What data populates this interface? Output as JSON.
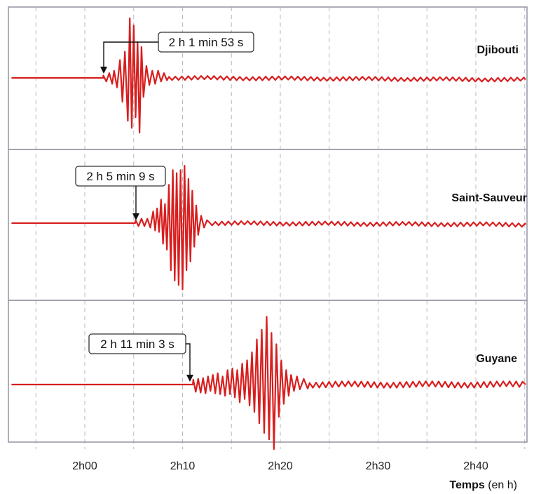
{
  "chart_data": {
    "type": "line",
    "xlabel_bold": "Temps",
    "xlabel_rest": " (en h)",
    "x_ticks": [
      {
        "label": "2h00",
        "minute": 0
      },
      {
        "label": "2h10",
        "minute": 10
      },
      {
        "label": "2h20",
        "minute": 20
      },
      {
        "label": "2h30",
        "minute": 30
      },
      {
        "label": "2h40",
        "minute": 40
      }
    ],
    "xlim_minutes": [
      -7.5,
      45
    ],
    "grid": true,
    "trace_color": "#d81e1e",
    "panel_border_color": "#9a9aa8",
    "series": [
      {
        "name": "Djibouti",
        "arrival_label": "2 h 1 min 53 s",
        "arrival_minute": 1.88,
        "flat_start": -7.5,
        "burst": [
          [
            1.9,
            0.2
          ],
          [
            2.2,
            -0.3
          ],
          [
            2.5,
            0.4
          ],
          [
            2.8,
            -0.5
          ],
          [
            3.0,
            0.6
          ],
          [
            3.3,
            -0.8
          ],
          [
            3.6,
            1.5
          ],
          [
            3.85,
            -2.0
          ],
          [
            4.1,
            2.2
          ],
          [
            4.4,
            -3.6
          ],
          [
            4.6,
            5.0
          ],
          [
            4.8,
            -4.2
          ],
          [
            5.0,
            4.4
          ],
          [
            5.2,
            -3.3
          ],
          [
            5.4,
            3.0
          ],
          [
            5.6,
            -4.6
          ],
          [
            5.8,
            2.6
          ],
          [
            6.0,
            -1.6
          ],
          [
            6.3,
            1.0
          ],
          [
            6.6,
            -0.6
          ],
          [
            6.9,
            0.6
          ],
          [
            7.2,
            -0.5
          ],
          [
            7.5,
            0.6
          ],
          [
            7.8,
            -0.3
          ],
          [
            8.1,
            0.4
          ],
          [
            8.4,
            -0.2
          ]
        ],
        "coda_from": 8.6,
        "coda_amp": 0.18,
        "end_offset": -0.15
      },
      {
        "name": "Saint-Sauveur",
        "arrival_label": "2 h 5 min 9 s",
        "arrival_minute": 5.15,
        "flat_start": -7.5,
        "burst": [
          [
            5.2,
            0.2
          ],
          [
            5.5,
            -0.2
          ],
          [
            5.8,
            0.3
          ],
          [
            6.1,
            -0.2
          ],
          [
            6.4,
            0.3
          ],
          [
            6.7,
            -0.3
          ],
          [
            7.0,
            0.8
          ],
          [
            7.2,
            -0.5
          ],
          [
            7.4,
            1.0
          ],
          [
            7.6,
            -0.6
          ],
          [
            7.8,
            1.6
          ],
          [
            8.0,
            -1.4
          ],
          [
            8.2,
            1.3
          ],
          [
            8.4,
            -1.8
          ],
          [
            8.6,
            2.6
          ],
          [
            8.8,
            -3.2
          ],
          [
            9.0,
            3.6
          ],
          [
            9.2,
            -3.9
          ],
          [
            9.4,
            3.4
          ],
          [
            9.6,
            -4.2
          ],
          [
            9.8,
            3.6
          ],
          [
            10.0,
            -4.5
          ],
          [
            10.2,
            3.9
          ],
          [
            10.4,
            -3.2
          ],
          [
            10.6,
            3.0
          ],
          [
            10.8,
            -2.6
          ],
          [
            11.0,
            2.2
          ],
          [
            11.2,
            -1.6
          ],
          [
            11.4,
            1.2
          ],
          [
            11.6,
            -0.8
          ],
          [
            11.9,
            0.5
          ],
          [
            12.2,
            -0.3
          ],
          [
            12.5,
            0.2
          ]
        ],
        "coda_from": 12.7,
        "coda_amp": 0.15,
        "end_offset": -0.1
      },
      {
        "name": "Guyane",
        "arrival_label": "2 h 11 min 3 s",
        "arrival_minute": 11.05,
        "flat_start": -7.5,
        "burst": [
          [
            11.1,
            0.3
          ],
          [
            11.35,
            -0.45
          ],
          [
            11.6,
            0.35
          ],
          [
            11.85,
            -0.5
          ],
          [
            12.1,
            0.4
          ],
          [
            12.35,
            -0.55
          ],
          [
            12.6,
            0.5
          ],
          [
            12.85,
            -0.4
          ],
          [
            13.1,
            0.6
          ],
          [
            13.35,
            -0.55
          ],
          [
            13.6,
            0.7
          ],
          [
            13.85,
            -0.6
          ],
          [
            14.1,
            0.5
          ],
          [
            14.35,
            -0.7
          ],
          [
            14.6,
            0.9
          ],
          [
            14.85,
            -0.6
          ],
          [
            15.1,
            1.0
          ],
          [
            15.35,
            -0.8
          ],
          [
            15.6,
            0.9
          ],
          [
            15.85,
            -1.1
          ],
          [
            16.1,
            1.3
          ],
          [
            16.35,
            -0.9
          ],
          [
            16.6,
            1.5
          ],
          [
            16.85,
            -1.3
          ],
          [
            17.1,
            2.0
          ],
          [
            17.35,
            -1.7
          ],
          [
            17.6,
            2.8
          ],
          [
            17.85,
            -2.4
          ],
          [
            18.1,
            3.4
          ],
          [
            18.35,
            -3.0
          ],
          [
            18.6,
            4.2
          ],
          [
            18.85,
            -3.4
          ],
          [
            19.1,
            3.2
          ],
          [
            19.35,
            -4.0
          ],
          [
            19.6,
            2.5
          ],
          [
            19.85,
            -2.0
          ],
          [
            20.1,
            1.5
          ],
          [
            20.35,
            -1.2
          ],
          [
            20.6,
            0.9
          ],
          [
            20.85,
            -0.7
          ],
          [
            21.1,
            0.6
          ],
          [
            21.4,
            -0.4
          ],
          [
            21.7,
            0.5
          ],
          [
            22.0,
            -0.3
          ],
          [
            22.4,
            0.35
          ],
          [
            22.8,
            -0.25
          ]
        ],
        "coda_from": 23.0,
        "coda_amp": 0.2,
        "end_offset": 0.0
      }
    ]
  }
}
